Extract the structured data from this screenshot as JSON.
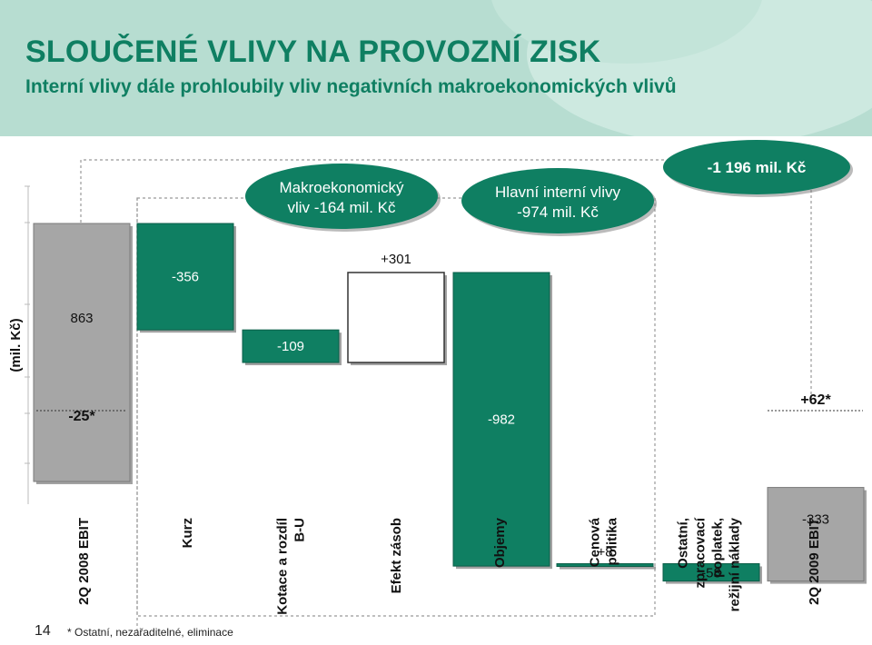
{
  "header": {
    "title": "SLOUČENÉ VLIVY NA PROVOZNÍ ZISK",
    "subtitle": "Interní vlivy dále prohloubily vliv negativních makroekonomických vlivů"
  },
  "colors": {
    "green": "#0f7f62",
    "banner": "#b7ddd1",
    "gray": "#a6a6a6",
    "title": "#0f7f62"
  },
  "callouts": {
    "macro": "Makroekonomický vliv -164 mil. Kč",
    "internal": "Hlavní interní vlivy -974 mil. Kč",
    "total": "-1 196 mil. Kč"
  },
  "chart_data": {
    "type": "waterfall",
    "ylabel": "(mil. Kč)",
    "categories": [
      "2Q 2008 EBIT",
      "Kurz",
      "Kotace a rozdíl B-U",
      "Efekt zásob",
      "Objemy",
      "Cenová politika",
      "Ostatní, zpracovací poplatek, režijní náklady",
      "2Q 2009 EBIT"
    ],
    "bars": [
      {
        "category": "2Q 2008 EBIT",
        "kind": "total",
        "value": 863,
        "label": "863",
        "extra_label": "-25*",
        "color": "gray"
      },
      {
        "category": "Kurz",
        "kind": "change",
        "value": -356,
        "label": "-356",
        "color": "green"
      },
      {
        "category": "Kotace a rozdíl B-U",
        "kind": "change",
        "value": -109,
        "label": "-109",
        "color": "green"
      },
      {
        "category": "Efekt zásob",
        "kind": "change",
        "value": 301,
        "label": "+301",
        "color": "white"
      },
      {
        "category": "Objemy",
        "kind": "change",
        "value": -982,
        "label": "-982",
        "color": "green"
      },
      {
        "category": "Cenová politika",
        "kind": "change",
        "value": 8,
        "label": "+8",
        "color": "green"
      },
      {
        "category": "Ostatní, zpracovací poplatek, režijní náklady",
        "kind": "change",
        "value": -58,
        "label": "-58",
        "color": "green"
      },
      {
        "category": "2Q 2009 EBIT",
        "kind": "total",
        "value": -333,
        "label": "-333",
        "extra_label": "+62*",
        "color": "gray"
      }
    ]
  },
  "footer": {
    "page_number": "14",
    "footnote": "* Ostatní, nezařaditelné, eliminace"
  }
}
